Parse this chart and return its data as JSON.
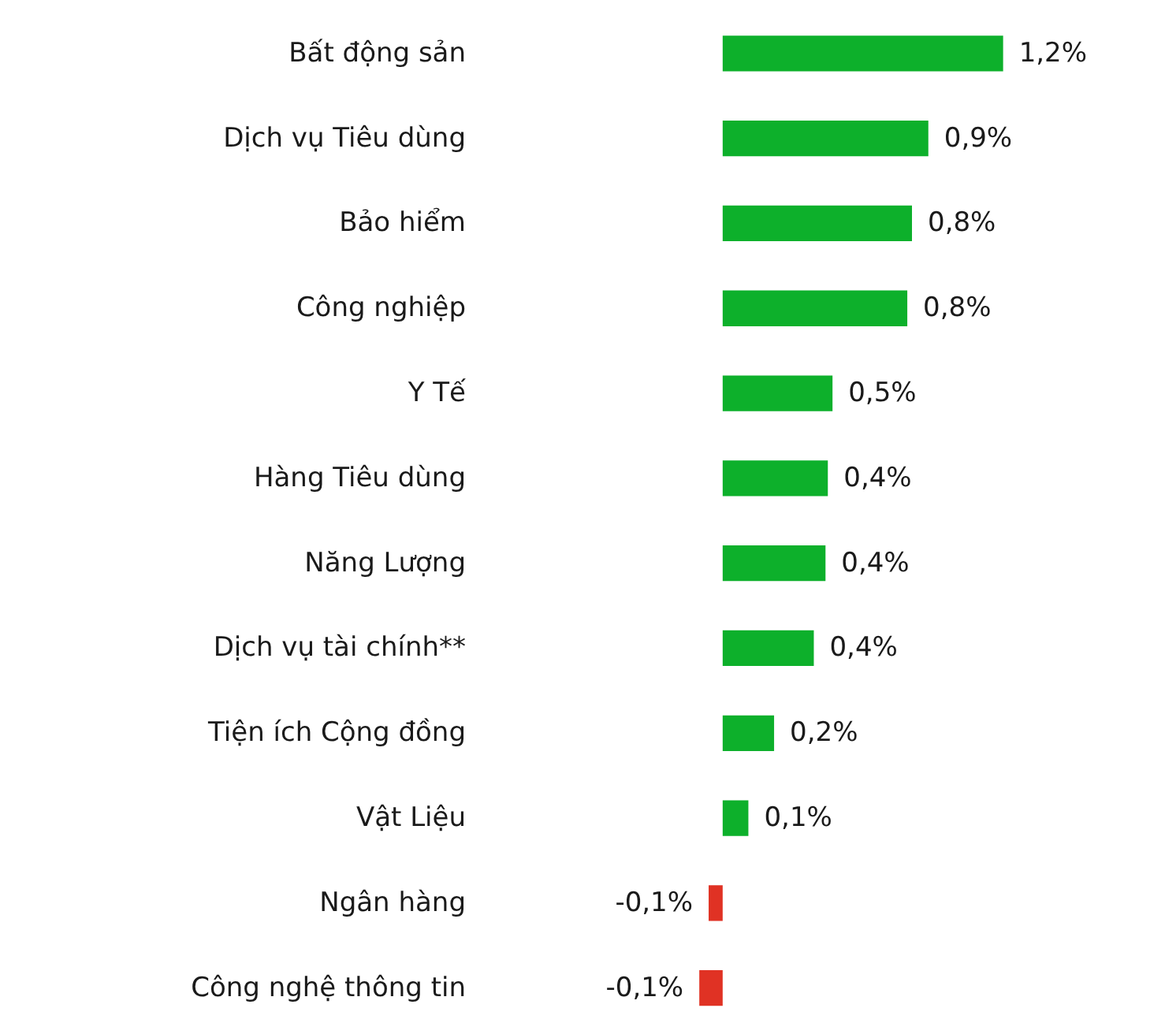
{
  "chart_data": {
    "type": "bar",
    "orientation": "horizontal",
    "categories": [
      "Bất động sản",
      "Dịch vụ Tiêu dùng",
      "Bảo hiểm",
      "Công nghiệp",
      "Y Tế",
      "Hàng Tiêu dùng",
      "Năng Lượng",
      "Dịch vụ tài chính**",
      "Tiện ích Cộng đồng",
      "Vật Liệu",
      "Ngân hàng",
      "Công nghệ thông tin"
    ],
    "values": [
      1.2,
      0.88,
      0.81,
      0.79,
      0.47,
      0.45,
      0.44,
      0.39,
      0.22,
      0.11,
      -0.06,
      -0.1
    ],
    "value_labels": [
      "1,2%",
      "0,9%",
      "0,8%",
      "0,8%",
      "0,5%",
      "0,4%",
      "0,4%",
      "0,4%",
      "0,2%",
      "0,1%",
      "-0,1%",
      "-0,1%"
    ],
    "colors": [
      "#0db02b",
      "#0db02b",
      "#0db02b",
      "#0db02b",
      "#0db02b",
      "#0db02b",
      "#0db02b",
      "#0db02b",
      "#0db02b",
      "#0db02b",
      "#e03224",
      "#e03224"
    ],
    "grid": false
  }
}
